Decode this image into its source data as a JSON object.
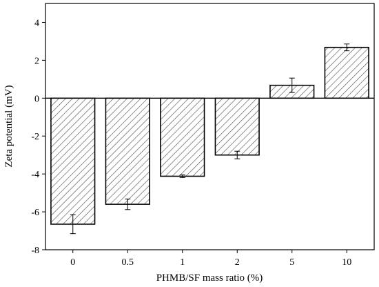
{
  "chart_data": {
    "type": "bar",
    "title": "",
    "xlabel": "PHMB/SF mass ratio (%)",
    "ylabel": "Zeta potential (mV)",
    "categories": [
      "0",
      "0.5",
      "1",
      "2",
      "5",
      "10"
    ],
    "values": [
      -6.65,
      -5.6,
      -4.12,
      -3.0,
      0.68,
      2.68
    ],
    "errors": [
      0.5,
      0.28,
      0.07,
      0.2,
      0.38,
      0.18
    ],
    "ylim": [
      -8,
      5
    ],
    "yticks": [
      -8,
      -6,
      -4,
      -2,
      0,
      2,
      4
    ],
    "ytick_labels": [
      "-8",
      "-6",
      "-4",
      "-2",
      "0",
      "2",
      "4"
    ],
    "grid": false,
    "bar_fill": "hatched",
    "colors": {
      "bar_edge": "#000000",
      "hatch": "#444444",
      "background": "#ffffff"
    }
  }
}
